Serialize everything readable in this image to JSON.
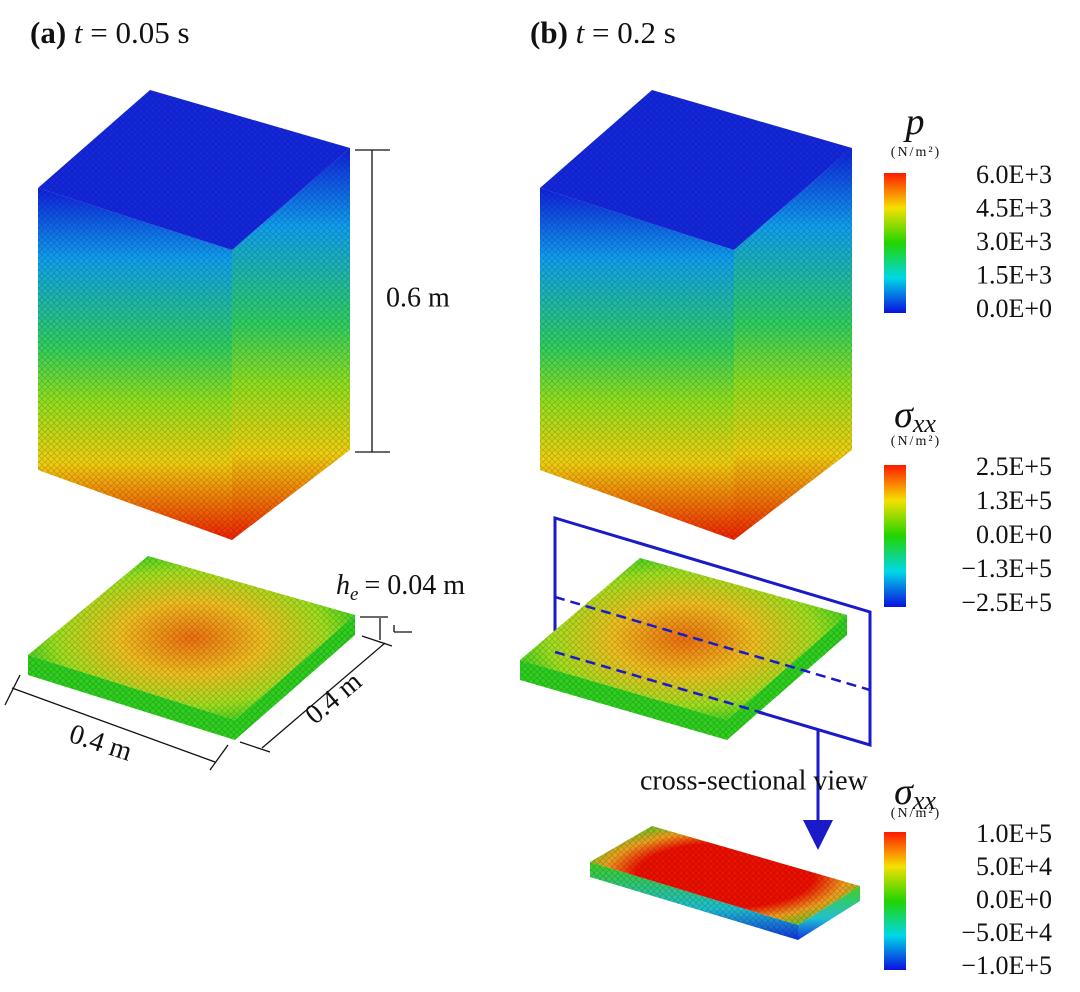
{
  "panels": [
    {
      "label": "(a)",
      "var": "t",
      "time": "= 0.05 s"
    },
    {
      "label": "(b)",
      "var": "t",
      "time": "= 0.2 s"
    }
  ],
  "dimensions": {
    "height": "0.6 m",
    "width": "0.4 m",
    "depth": "0.4 m",
    "thickness_symbol": "h",
    "thickness_sub": "e",
    "thickness": "= 0.04 m"
  },
  "annotation": "cross-sectional view",
  "colorbars": [
    {
      "symbol": "p",
      "unit": "(N/m²)",
      "ticks": [
        "6.0E+3",
        "4.5E+3",
        "3.0E+3",
        "1.5E+3",
        "0.0E+0"
      ]
    },
    {
      "symbol": "σ",
      "subscript": "xx",
      "unit": "(N/m²)",
      "ticks": [
        "2.5E+5",
        "1.3E+5",
        "0.0E+0",
        "−1.3E+5",
        "−2.5E+5"
      ]
    },
    {
      "symbol": "σ",
      "subscript": "xx",
      "unit": "(N/m²)",
      "ticks": [
        "1.0E+5",
        "5.0E+4",
        "0.0E+0",
        "−5.0E+4",
        "−1.0E+5"
      ]
    }
  ]
}
